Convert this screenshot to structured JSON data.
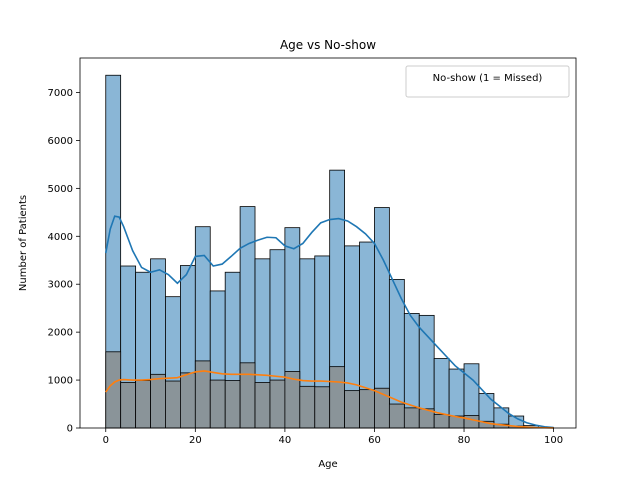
{
  "chart_data": {
    "type": "bar",
    "title": "Age vs No-show",
    "xlabel": "Age",
    "ylabel": "Number of Patients",
    "xlim": [
      -5.75,
      105.0
    ],
    "ylim": [
      0,
      7720
    ],
    "xticks": [
      0,
      20,
      40,
      60,
      80,
      100
    ],
    "yticks": [
      0,
      1000,
      2000,
      3000,
      4000,
      5000,
      6000,
      7000
    ],
    "legend": {
      "title": "No-show (1 = Missed)",
      "placement": "top-right"
    },
    "colors": {
      "series0_fill": "#8ab6d6",
      "series1_fill": "#8a9499",
      "kde0": "#1f77b4",
      "kde1": "#ff7f0e",
      "edge": "#000000"
    },
    "bin_edges": [
      0,
      3.33,
      6.67,
      10,
      13.33,
      16.67,
      20,
      23.33,
      26.67,
      30,
      33.33,
      36.67,
      40,
      43.33,
      46.67,
      50,
      53.33,
      56.67,
      60,
      63.33,
      66.67,
      70,
      73.33,
      76.67,
      80,
      83.33,
      86.67,
      90,
      93.33,
      96.67,
      100
    ],
    "series": [
      {
        "values": [
          7360,
          3380,
          3250,
          3530,
          2740,
          3390,
          4200,
          2860,
          3250,
          4620,
          3530,
          3720,
          4180,
          3530,
          3590,
          5380,
          3800,
          3880,
          4600,
          3100,
          2390,
          2350,
          1450,
          1230,
          1340,
          720,
          420,
          250,
          50,
          10
        ]
      },
      {
        "values": [
          1590,
          950,
          990,
          1120,
          980,
          1150,
          1400,
          1000,
          990,
          1360,
          950,
          1000,
          1180,
          870,
          860,
          1280,
          780,
          800,
          830,
          500,
          420,
          400,
          280,
          250,
          260,
          140,
          80,
          40,
          10,
          2
        ]
      }
    ],
    "kde": [
      {
        "x": [
          0,
          1,
          2,
          3,
          4,
          6,
          8,
          10,
          12,
          14,
          16,
          18,
          20,
          22,
          24,
          26,
          28,
          30,
          32,
          34,
          36,
          38,
          40,
          42,
          44,
          46,
          48,
          50,
          52,
          54,
          56,
          58,
          60,
          62,
          64,
          66,
          68,
          70,
          72,
          74,
          76,
          78,
          80,
          82,
          84,
          86,
          88,
          90,
          92,
          94,
          96,
          98,
          100
        ],
        "y": [
          3650,
          4150,
          4420,
          4400,
          4200,
          3700,
          3350,
          3250,
          3300,
          3200,
          3020,
          3200,
          3580,
          3600,
          3380,
          3420,
          3580,
          3750,
          3850,
          3920,
          3980,
          3970,
          3800,
          3740,
          3850,
          4080,
          4280,
          4350,
          4370,
          4320,
          4200,
          4050,
          3850,
          3500,
          3100,
          2700,
          2350,
          2100,
          1900,
          1700,
          1500,
          1300,
          1150,
          1000,
          800,
          600,
          450,
          300,
          190,
          110,
          60,
          25,
          10
        ]
      },
      {
        "x": [
          0,
          1,
          2,
          3,
          4,
          6,
          8,
          10,
          12,
          14,
          16,
          18,
          20,
          22,
          24,
          26,
          28,
          30,
          32,
          34,
          36,
          38,
          40,
          42,
          44,
          46,
          48,
          50,
          52,
          54,
          56,
          58,
          60,
          62,
          64,
          66,
          68,
          70,
          72,
          74,
          76,
          78,
          80,
          82,
          84,
          86,
          88,
          90,
          92,
          94,
          96,
          98,
          100
        ],
        "y": [
          750,
          880,
          960,
          1000,
          1010,
          1000,
          1000,
          1010,
          1030,
          1040,
          1050,
          1110,
          1170,
          1190,
          1160,
          1130,
          1120,
          1120,
          1120,
          1110,
          1100,
          1080,
          1060,
          1020,
          990,
          980,
          980,
          970,
          960,
          940,
          900,
          840,
          780,
          700,
          620,
          540,
          480,
          420,
          370,
          320,
          280,
          240,
          210,
          170,
          130,
          90,
          70,
          50,
          30,
          20,
          10,
          5,
          2
        ]
      }
    ]
  }
}
